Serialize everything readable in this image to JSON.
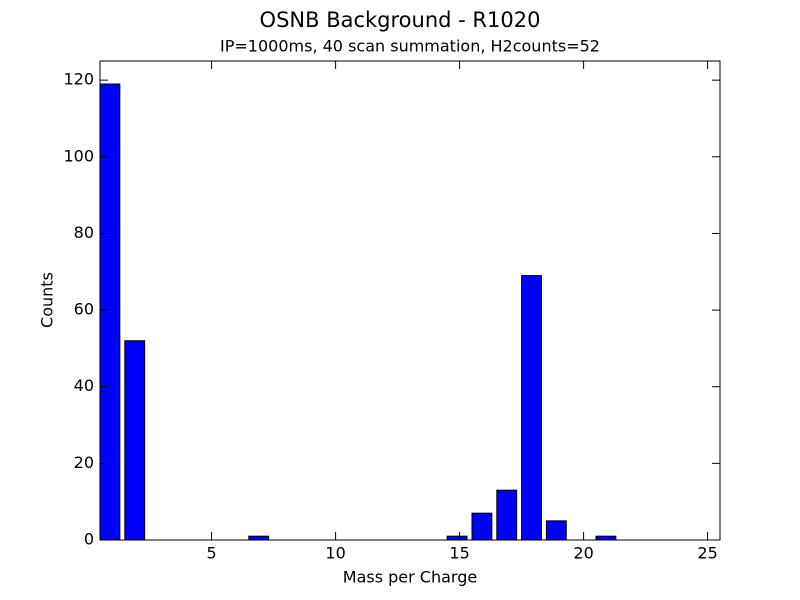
{
  "chart_data": {
    "type": "bar",
    "title": "OSNB Background - R1020",
    "subtitle": "IP=1000ms, 40 scan summation, H2counts=52",
    "x_label": "Mass per Charge",
    "y_label": "Counts",
    "x": [
      1,
      2,
      3,
      4,
      5,
      6,
      7,
      8,
      9,
      10,
      11,
      12,
      13,
      14,
      15,
      16,
      17,
      18,
      19,
      20,
      21,
      22
    ],
    "values": [
      119,
      52,
      0,
      0,
      0,
      0,
      1,
      0,
      0,
      0,
      0,
      0,
      0,
      0,
      1,
      7,
      13,
      69,
      5,
      0,
      1,
      0
    ],
    "color": "#0000ff",
    "xlim": [
      0.5,
      25.5
    ],
    "xticks": [
      5,
      10,
      15,
      20,
      25
    ],
    "ylim": [
      0,
      125
    ],
    "yticks": [
      0,
      20,
      40,
      60,
      80,
      100,
      120
    ]
  }
}
